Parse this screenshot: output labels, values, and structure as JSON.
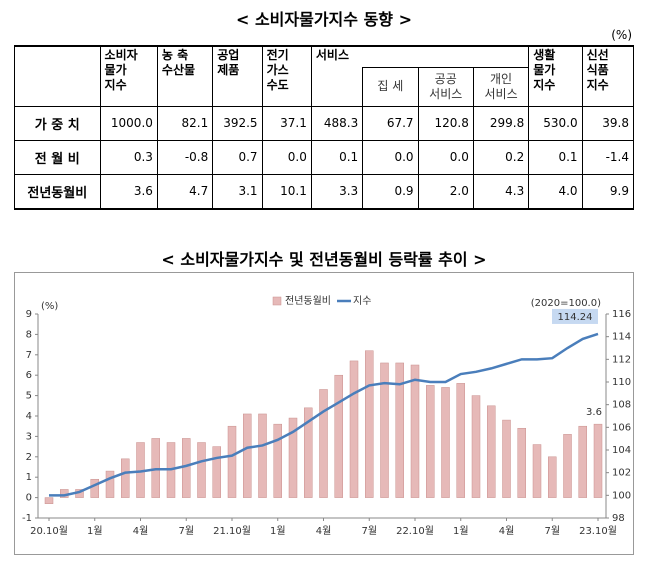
{
  "title": "< 소비자물가지수 동향 >",
  "table": {
    "unit": "(%)",
    "header": [
      "소비자\n물가\n지수",
      "농 축\n수산물",
      "공업\n제품",
      "전기\n가스\n수도",
      "서비스",
      "생활\n물가\n지수",
      "신선\n식품\n지수"
    ],
    "subheader": [
      "집 세",
      "공공\n서비스",
      "개인\n서비스"
    ],
    "rows": [
      [
        "가 중 치",
        "1000.0",
        "82.1",
        "392.5",
        "37.1",
        "488.3",
        "67.7",
        "120.8",
        "299.8",
        "530.0",
        "39.8"
      ],
      [
        "전 월 비",
        "0.3",
        "-0.8",
        "0.7",
        "0.0",
        "0.1",
        "0.0",
        "0.0",
        "0.2",
        "0.1",
        "-1.4"
      ],
      [
        "전년동월비",
        "3.6",
        "4.7",
        "3.1",
        "10.1",
        "3.3",
        "0.9",
        "2.0",
        "4.3",
        "4.0",
        "9.9"
      ]
    ]
  },
  "chart_title": "< 소비자물가지수 및 전년동월비 등락률 추이 >",
  "chart_data": {
    "type": "bar_line",
    "ylabel": "(%)",
    "y2label": "(2020=100.0)",
    "categories": [
      "20.10월",
      null,
      null,
      "1월",
      null,
      null,
      "4월",
      null,
      null,
      "7월",
      null,
      null,
      "21.10월",
      null,
      null,
      "1월",
      null,
      null,
      "4월",
      null,
      null,
      "7월",
      null,
      null,
      "22.10월",
      null,
      null,
      "1월",
      null,
      null,
      "4월",
      null,
      null,
      "7월",
      null,
      null,
      "23.10월"
    ],
    "series": [
      {
        "name": "전년동월비",
        "color": "#e6b9b8",
        "values": [
          -0.3,
          0.4,
          0.4,
          0.9,
          1.3,
          1.9,
          2.7,
          2.9,
          2.7,
          2.9,
          2.7,
          2.5,
          3.5,
          4.1,
          4.1,
          3.6,
          3.9,
          4.4,
          5.3,
          6.0,
          6.7,
          7.2,
          6.6,
          6.6,
          6.5,
          5.5,
          5.4,
          5.6,
          5.0,
          4.5,
          3.8,
          3.4,
          2.6,
          2.0,
          3.1,
          3.5,
          3.6
        ]
      },
      {
        "name": "지수",
        "color": "#4a7ebb",
        "axis": "y2",
        "values": [
          100.0,
          100.0,
          100.3,
          100.9,
          101.5,
          102.0,
          102.1,
          102.3,
          102.3,
          102.6,
          103.0,
          103.3,
          103.5,
          104.2,
          104.4,
          104.9,
          105.6,
          106.5,
          107.4,
          108.2,
          109.0,
          109.7,
          109.9,
          109.8,
          110.2,
          110.0,
          110.0,
          110.7,
          110.9,
          111.2,
          111.6,
          112.0,
          112.0,
          112.1,
          113.0,
          113.8,
          114.24
        ]
      }
    ],
    "ylim": [
      -1,
      9
    ],
    "yticks": [
      -1,
      0,
      1,
      2,
      3,
      4,
      5,
      6,
      7,
      8,
      9
    ],
    "y2lim": [
      98,
      116
    ],
    "y2ticks": [
      98,
      100,
      102,
      104,
      106,
      108,
      110,
      112,
      114,
      116
    ],
    "legend": "top"
  }
}
